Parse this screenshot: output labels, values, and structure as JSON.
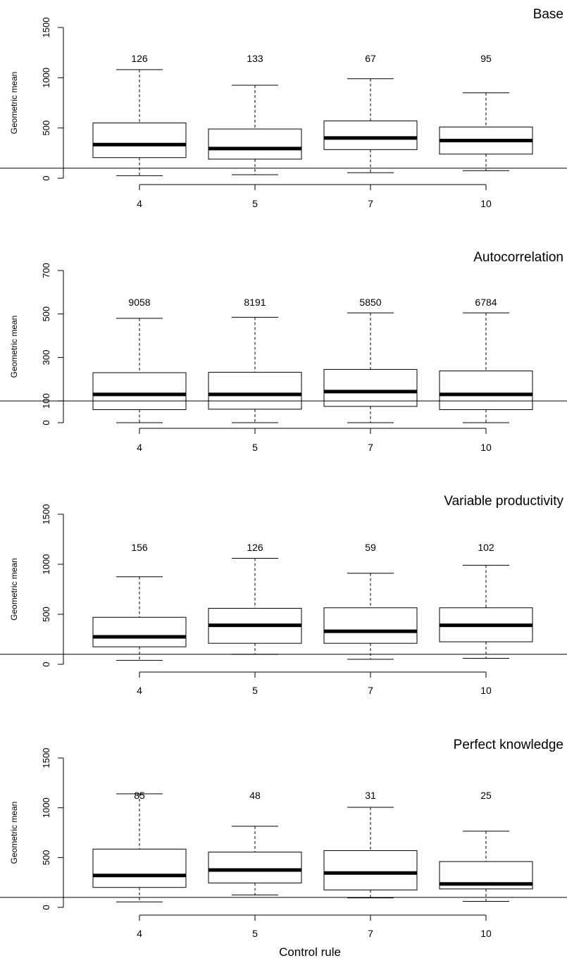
{
  "xlabel": "Control rule",
  "chart_data": [
    {
      "type": "box",
      "title": "Base",
      "ylabel": "Geometric mean",
      "ylim": [
        0,
        1500
      ],
      "yticks": [
        0,
        500,
        1000,
        1500
      ],
      "reference_line": 100,
      "categories": [
        "4",
        "5",
        "7",
        "10"
      ],
      "counts": [
        "126",
        "133",
        "67",
        "95"
      ],
      "boxes": [
        {
          "min": 25,
          "q1": 205,
          "median": 335,
          "q3": 550,
          "max": 1080
        },
        {
          "min": 35,
          "q1": 190,
          "median": 295,
          "q3": 490,
          "max": 925
        },
        {
          "min": 55,
          "q1": 285,
          "median": 400,
          "q3": 570,
          "max": 990
        },
        {
          "min": 75,
          "q1": 240,
          "median": 375,
          "q3": 510,
          "max": 850
        }
      ]
    },
    {
      "type": "box",
      "title": "Autocorrelation",
      "ylabel": "Geometric mean",
      "ylim": [
        0,
        700
      ],
      "yticks": [
        0,
        100,
        300,
        500,
        700
      ],
      "reference_line": 100,
      "categories": [
        "4",
        "5",
        "7",
        "10"
      ],
      "counts": [
        "9058",
        "8191",
        "5850",
        "6784"
      ],
      "boxes": [
        {
          "min": 0,
          "q1": 60,
          "median": 130,
          "q3": 230,
          "max": 480
        },
        {
          "min": 0,
          "q1": 62,
          "median": 130,
          "q3": 232,
          "max": 485
        },
        {
          "min": 0,
          "q1": 75,
          "median": 143,
          "q3": 245,
          "max": 505
        },
        {
          "min": 0,
          "q1": 60,
          "median": 130,
          "q3": 238,
          "max": 505
        }
      ]
    },
    {
      "type": "box",
      "title": "Variable productivity",
      "ylabel": "Geometric mean",
      "ylim": [
        0,
        1500
      ],
      "yticks": [
        0,
        500,
        1000,
        1500
      ],
      "reference_line": 100,
      "categories": [
        "4",
        "5",
        "7",
        "10"
      ],
      "counts": [
        "156",
        "126",
        "59",
        "102"
      ],
      "boxes": [
        {
          "min": 40,
          "q1": 175,
          "median": 275,
          "q3": 470,
          "max": 875
        },
        {
          "min": 100,
          "q1": 210,
          "median": 390,
          "q3": 560,
          "max": 1060
        },
        {
          "min": 50,
          "q1": 210,
          "median": 330,
          "q3": 565,
          "max": 910
        },
        {
          "min": 60,
          "q1": 225,
          "median": 390,
          "q3": 565,
          "max": 990
        }
      ]
    },
    {
      "type": "box",
      "title": "Perfect knowledge",
      "ylabel": "Geometric mean",
      "ylim": [
        0,
        1500
      ],
      "yticks": [
        0,
        500,
        1000,
        1500
      ],
      "reference_line": 100,
      "categories": [
        "4",
        "5",
        "7",
        "10"
      ],
      "counts": [
        "85",
        "48",
        "31",
        "25"
      ],
      "boxes": [
        {
          "min": 55,
          "q1": 200,
          "median": 320,
          "q3": 585,
          "max": 1140
        },
        {
          "min": 125,
          "q1": 245,
          "median": 375,
          "q3": 555,
          "max": 815
        },
        {
          "min": 95,
          "q1": 175,
          "median": 345,
          "q3": 570,
          "max": 1005
        },
        {
          "min": 60,
          "q1": 185,
          "median": 235,
          "q3": 460,
          "max": 765
        }
      ]
    }
  ]
}
